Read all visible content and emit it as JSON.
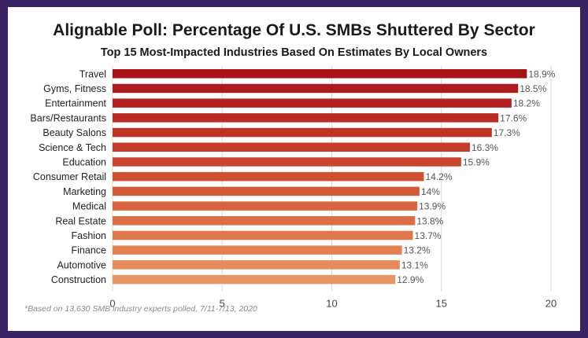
{
  "chart_data": {
    "type": "bar",
    "orientation": "horizontal",
    "title": "Alignable Poll: Percentage Of U.S. SMBs Shuttered By Sector",
    "subtitle": "Top 15 Most-Impacted Industries Based On Estimates By Local Owners",
    "categories": [
      "Travel",
      "Gyms, Fitness",
      "Entertainment",
      "Bars/Restaurants",
      "Beauty Salons",
      "Science & Tech",
      "Education",
      "Consumer Retail",
      "Marketing",
      "Medical",
      "Real Estate",
      "Fashion",
      "Finance",
      "Automotive",
      "Construction"
    ],
    "values": [
      18.9,
      18.5,
      18.2,
      17.6,
      17.3,
      16.3,
      15.9,
      14.2,
      14,
      13.9,
      13.8,
      13.7,
      13.2,
      13.1,
      12.9
    ],
    "value_labels": [
      "18.9%",
      "18.5%",
      "18.2%",
      "17.6%",
      "17.3%",
      "16.3%",
      "15.9%",
      "14.2%",
      "14%",
      "13.9%",
      "13.8%",
      "13.7%",
      "13.2%",
      "13.1%",
      "12.9%"
    ],
    "xlim": [
      0,
      20
    ],
    "xticks": [
      "0",
      "5",
      "10",
      "15",
      "20"
    ],
    "colors": [
      "#a8131a",
      "#ae1b1d",
      "#b42320",
      "#ba2b24",
      "#c03327",
      "#c63c2b",
      "#cb462f",
      "#d04f33",
      "#d45939",
      "#d8633f",
      "#dc6d45",
      "#e0774c",
      "#e38153",
      "#e68b5b",
      "#e99563"
    ],
    "grid": true,
    "footnote": "*Based on 13,630 SMB industry experts polled, 7/11-7/13, 2020"
  }
}
